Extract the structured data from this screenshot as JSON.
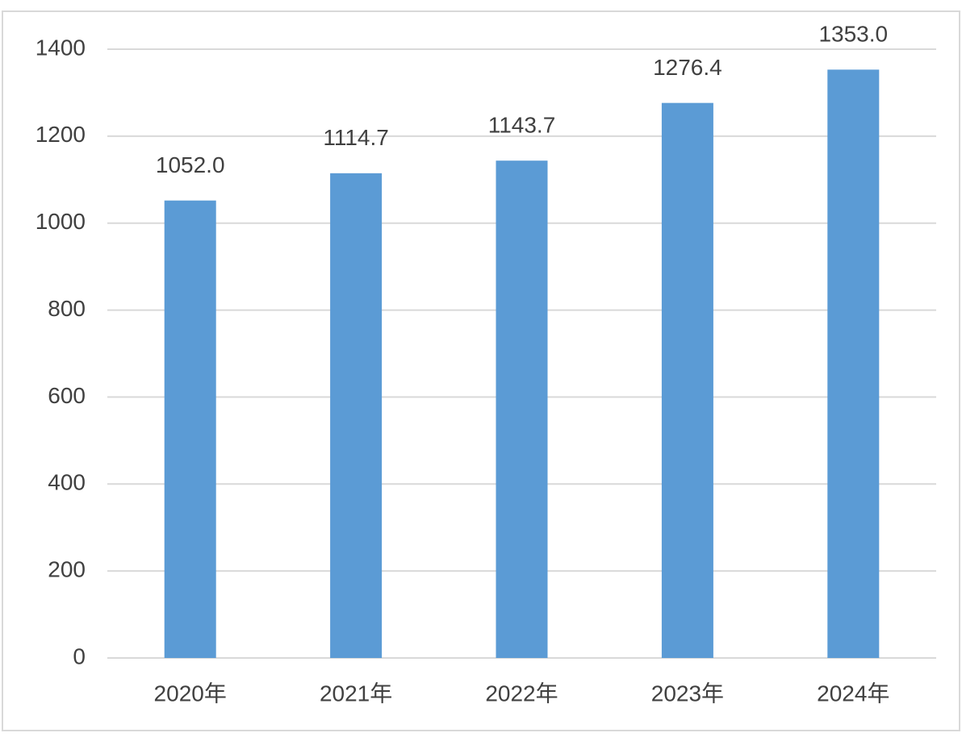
{
  "chart_data": {
    "type": "bar",
    "categories": [
      "2020年",
      "2021年",
      "2022年",
      "2023年",
      "2024年"
    ],
    "values": [
      1052.0,
      1114.7,
      1143.7,
      1276.4,
      1353.0
    ],
    "value_labels": [
      "1052.0",
      "1114.7",
      "1143.7",
      "1276.4",
      "1353.0"
    ],
    "color": "#5b9bd5",
    "ylim": [
      0,
      1400
    ],
    "yticks": [
      0,
      200,
      400,
      600,
      800,
      1000,
      1200,
      1400
    ],
    "grid": true
  }
}
